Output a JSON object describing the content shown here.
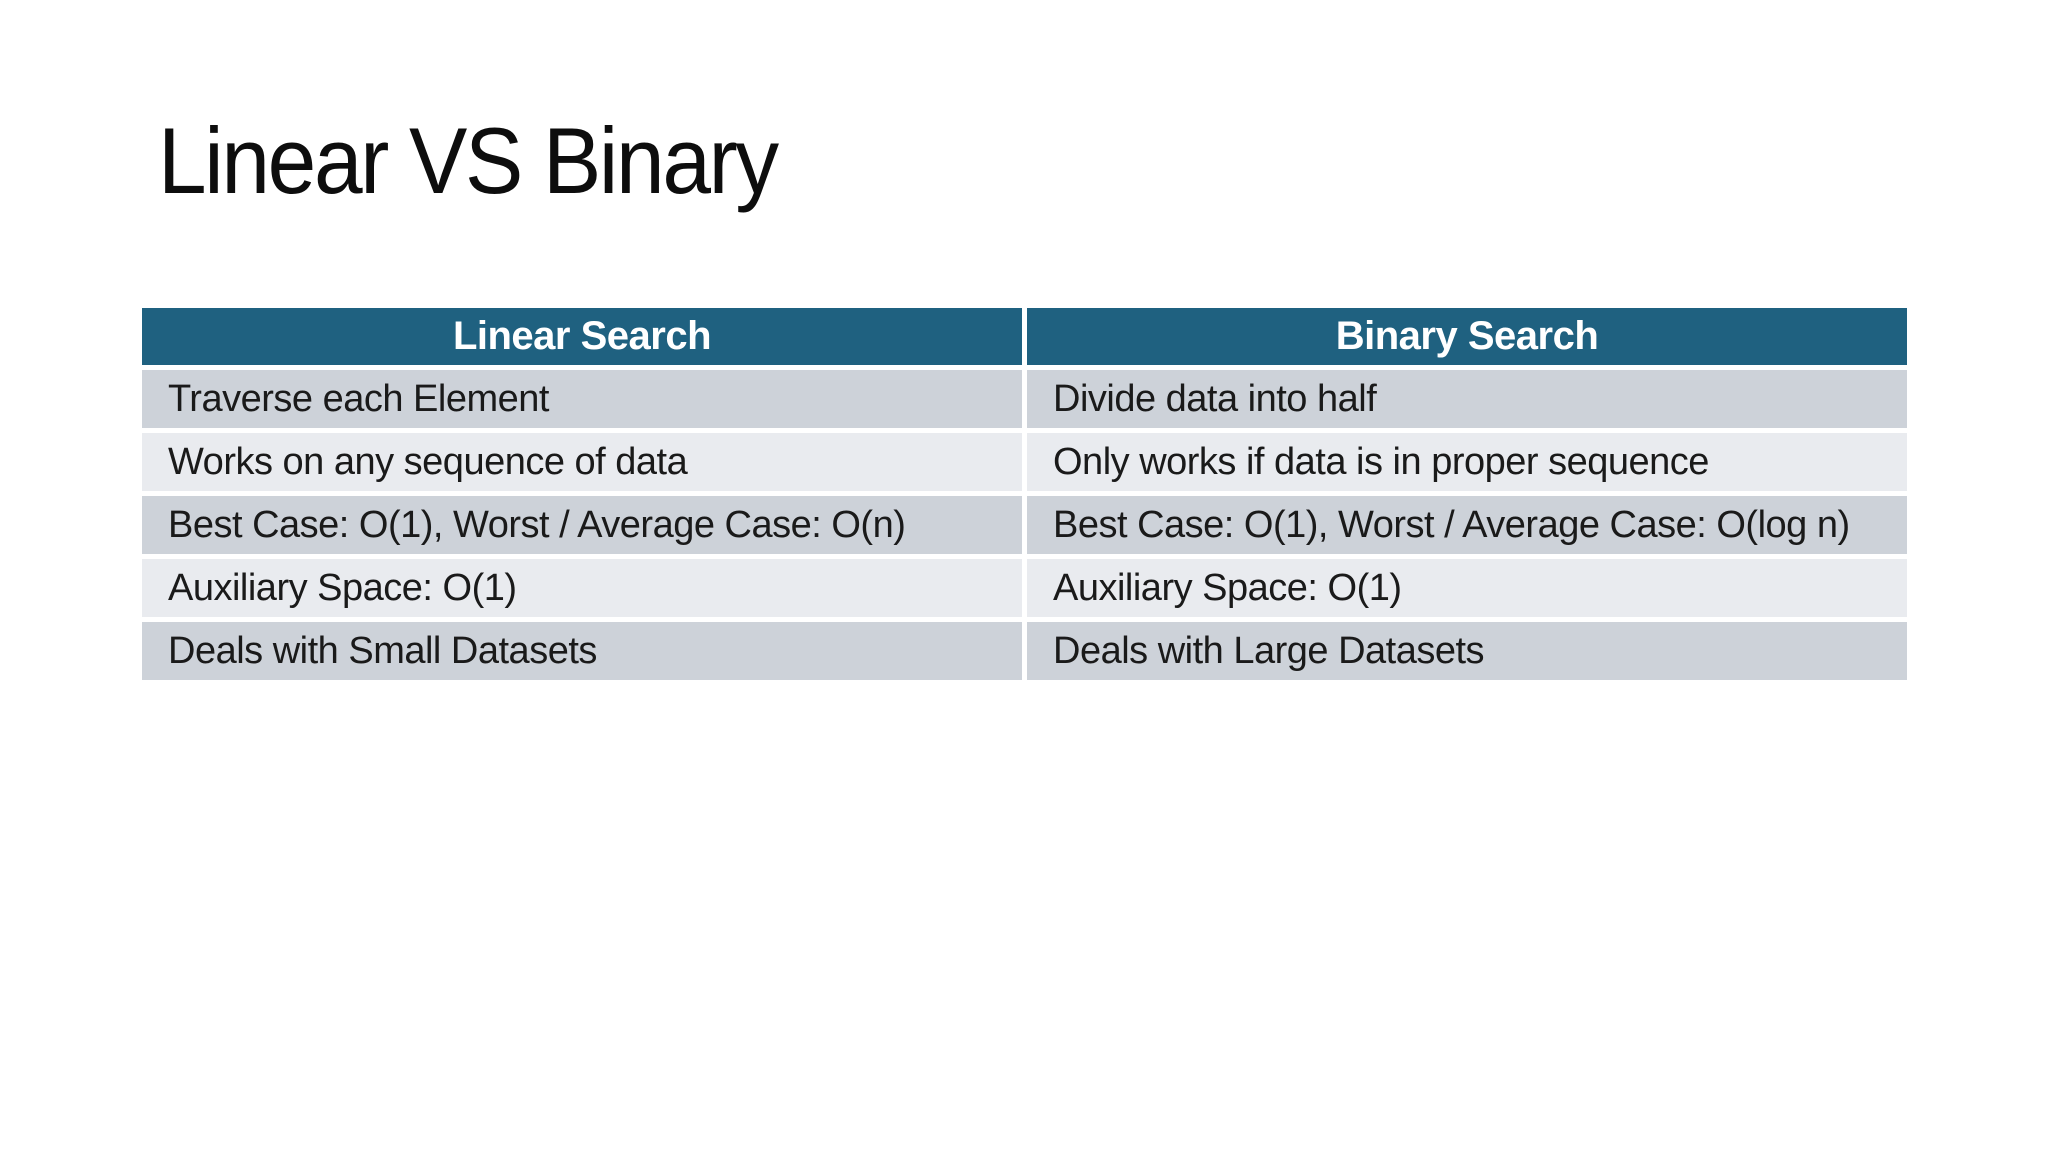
{
  "slide": {
    "title": "Linear VS Binary"
  },
  "table": {
    "headers": [
      "Linear Search",
      "Binary Search"
    ],
    "rows": [
      [
        "Traverse each Element",
        "Divide data into half"
      ],
      [
        "Works on any sequence of data",
        "Only works if data is in proper sequence"
      ],
      [
        "Best Case: O(1), Worst / Average Case: O(n)",
        "Best Case: O(1), Worst / Average Case: O(log n)"
      ],
      [
        "Auxiliary Space: O(1)",
        "Auxiliary Space: O(1)"
      ],
      [
        "Deals with Small Datasets",
        "Deals with Large Datasets"
      ]
    ],
    "colors": {
      "header_bg": "#1f6180",
      "header_text": "#ffffff",
      "row_odd_bg": "#cdd2d9",
      "row_even_bg": "#e9ebef",
      "body_text": "#1a1a1a"
    }
  }
}
